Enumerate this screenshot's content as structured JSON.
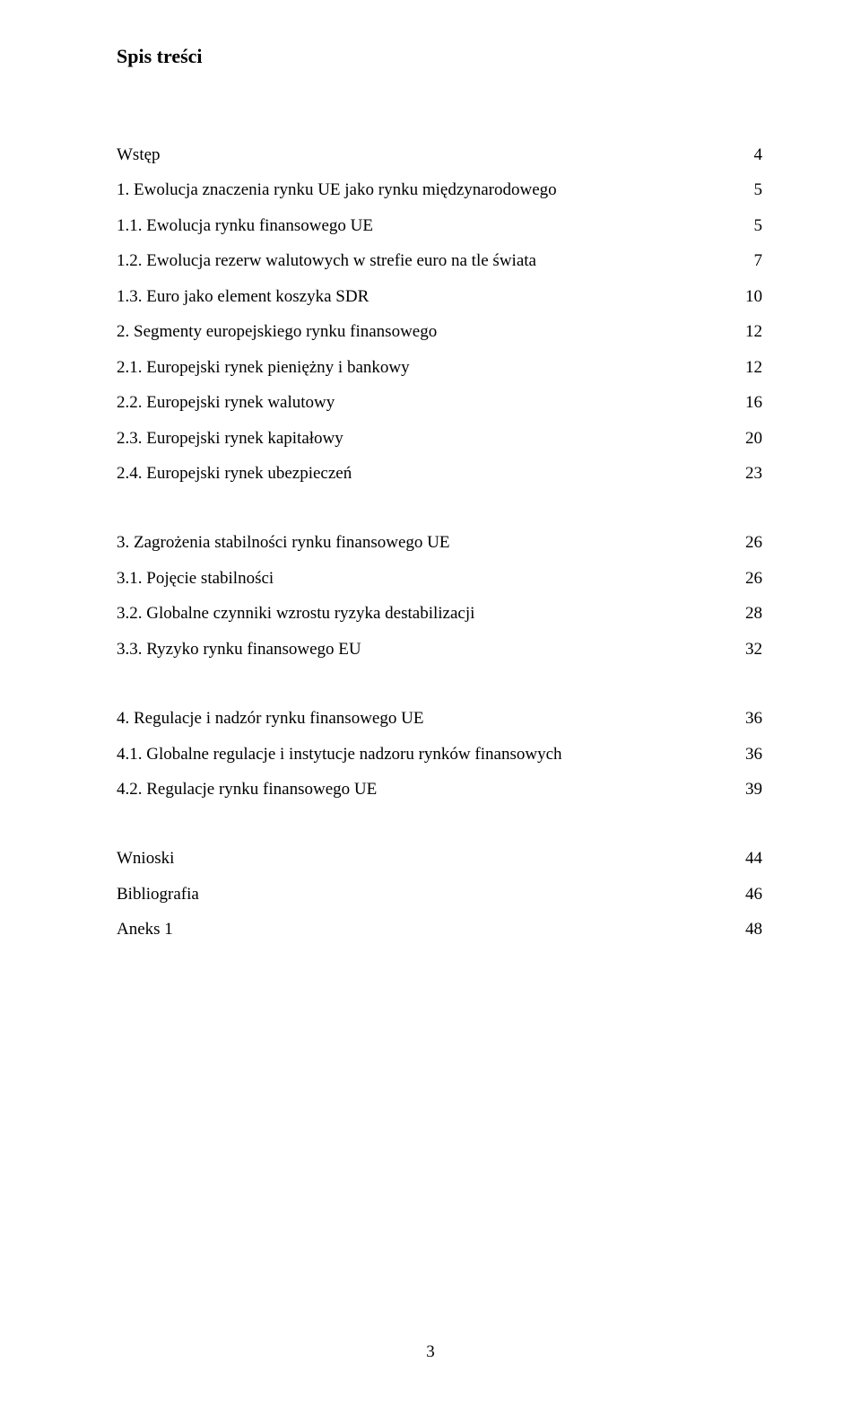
{
  "heading": "Spis treści",
  "pageNumber": "3",
  "sections": [
    {
      "gapAfter": true,
      "items": [
        {
          "label": "Wstęp",
          "page": "4"
        },
        {
          "label": "1. Ewolucja znaczenia rynku UE  jako rynku międzynarodowego",
          "page": "5"
        },
        {
          "label": "1.1. Ewolucja rynku finansowego UE",
          "page": "5"
        },
        {
          "label": "1.2. Ewolucja rezerw walutowych w strefie euro na tle świata",
          "page": "7"
        },
        {
          "label": "1.3. Euro jako element  koszyka SDR",
          "page": "10"
        },
        {
          "label": "2. Segmenty europejskiego rynku finansowego",
          "page": "12"
        },
        {
          "label": "2.1.  Europejski rynek pieniężny i bankowy",
          "page": "12"
        },
        {
          "label": "2.2. Europejski  rynek walutowy",
          "page": "16"
        },
        {
          "label": "2.3. Europejski rynek kapitałowy",
          "page": "20"
        },
        {
          "label": "2.4. Europejski rynek ubezpieczeń",
          "page": "23"
        }
      ]
    },
    {
      "gapAfter": true,
      "items": [
        {
          "label": "3. Zagrożenia stabilności rynku finansowego UE",
          "page": "26"
        },
        {
          "label": "3.1. Pojęcie stabilności",
          "page": "26"
        },
        {
          "label": "3.2. Globalne czynniki wzrostu ryzyka destabilizacji",
          "page": "28"
        },
        {
          "label": "3.3.  Ryzyko rynku finansowego EU",
          "page": "32"
        }
      ]
    },
    {
      "gapAfter": true,
      "items": [
        {
          "label": "4. Regulacje i nadzór rynku finansowego UE",
          "page": "36"
        },
        {
          "label": "4.1. Globalne regulacje i instytucje nadzoru rynków finansowych",
          "page": "36"
        },
        {
          "label": "4.2. Regulacje  rynku finansowego UE",
          "page": "39"
        }
      ]
    },
    {
      "gapAfter": false,
      "items": [
        {
          "label": "Wnioski",
          "page": "44"
        },
        {
          "label": "Bibliografia",
          "page": "46"
        },
        {
          "label": "Aneks 1",
          "page": "48"
        }
      ]
    }
  ]
}
